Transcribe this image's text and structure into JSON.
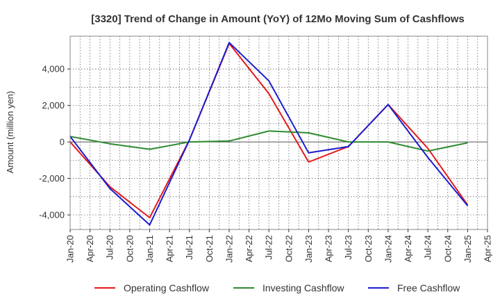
{
  "chart_data": {
    "type": "line",
    "title": "[3320]  Trend of Change in Amount (YoY) of 12Mo Moving Sum of Cashflows",
    "xlabel": "",
    "ylabel": "Amount (million yen)",
    "ylim": [
      -4800,
      5800
    ],
    "yticks": [
      -4000,
      -2000,
      0,
      2000,
      4000
    ],
    "ytick_labels": [
      "-4,000",
      "-2,000",
      "0",
      "2,000",
      "4,000"
    ],
    "categories": [
      "Jan-20",
      "Apr-20",
      "Jul-20",
      "Oct-20",
      "Jan-21",
      "Apr-21",
      "Jul-21",
      "Oct-21",
      "Jan-22",
      "Apr-22",
      "Jul-22",
      "Oct-22",
      "Jan-23",
      "Apr-23",
      "Jul-23",
      "Oct-23",
      "Jan-24",
      "Apr-24",
      "Jul-24",
      "Oct-24",
      "Jan-25",
      "Apr-25"
    ],
    "grid": true,
    "legend_position": "bottom",
    "series": [
      {
        "name": "Operating Cashflow",
        "color": "#e41a1c",
        "values": [
          0,
          null,
          -2450,
          null,
          -4150,
          null,
          100,
          null,
          5400,
          null,
          2650,
          null,
          -1100,
          null,
          -250,
          null,
          2050,
          null,
          -350,
          null,
          -3450,
          null
        ]
      },
      {
        "name": "Investing Cashflow",
        "color": "#2e8b2e",
        "values": [
          300,
          null,
          -100,
          null,
          -400,
          null,
          0,
          null,
          50,
          null,
          600,
          null,
          500,
          null,
          0,
          null,
          0,
          null,
          -500,
          null,
          -50,
          null
        ]
      },
      {
        "name": "Free Cashflow",
        "color": "#1c1ccf",
        "values": [
          300,
          null,
          -2550,
          null,
          -4550,
          null,
          100,
          null,
          5450,
          null,
          3350,
          null,
          -600,
          null,
          -250,
          null,
          2050,
          null,
          -850,
          null,
          -3500,
          null
        ]
      }
    ]
  }
}
